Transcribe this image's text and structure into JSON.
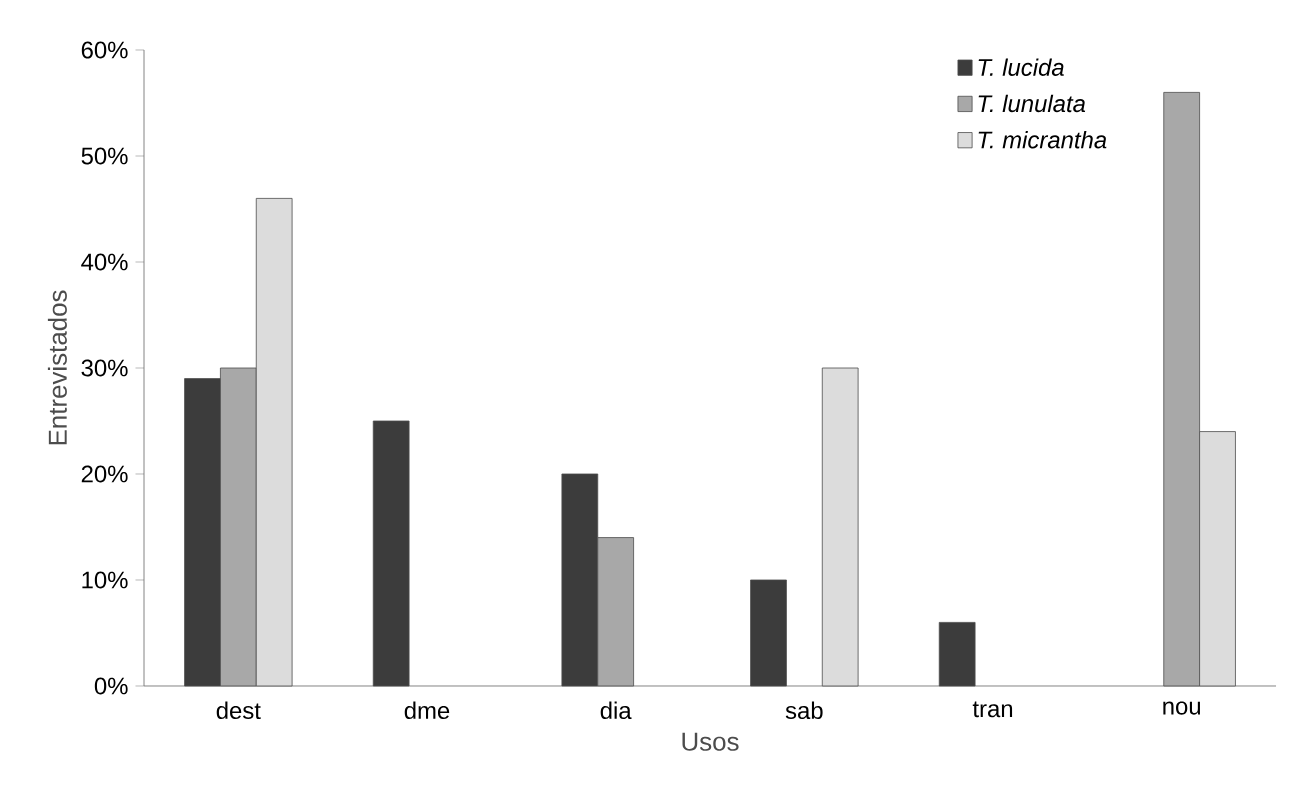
{
  "chart_data": {
    "type": "bar",
    "xlabel": "Usos",
    "ylabel": "Entrevistados",
    "categories": [
      "dest",
      "dme",
      "dia",
      "sab",
      "tran",
      "nou"
    ],
    "series": [
      {
        "name": "T. lucida",
        "color": "#3c3c3c",
        "values": [
          29,
          25,
          20,
          10,
          6,
          null
        ]
      },
      {
        "name": "T. lunulata",
        "color": "#a8a8a8",
        "values": [
          30,
          null,
          14,
          null,
          null,
          56
        ]
      },
      {
        "name": "T. micrantha",
        "color": "#dcdcdc",
        "values": [
          46,
          null,
          null,
          30,
          null,
          24
        ]
      }
    ],
    "ylim": [
      0,
      60
    ],
    "yticks": [
      {
        "value": 0,
        "label": "0%"
      },
      {
        "value": 10,
        "label": "10%"
      },
      {
        "value": 20,
        "label": "20%"
      },
      {
        "value": 30,
        "label": "30%"
      },
      {
        "value": 40,
        "label": "40%"
      },
      {
        "value": 50,
        "label": "50%"
      },
      {
        "value": 60,
        "label": "60%"
      }
    ],
    "legend": "top right"
  }
}
